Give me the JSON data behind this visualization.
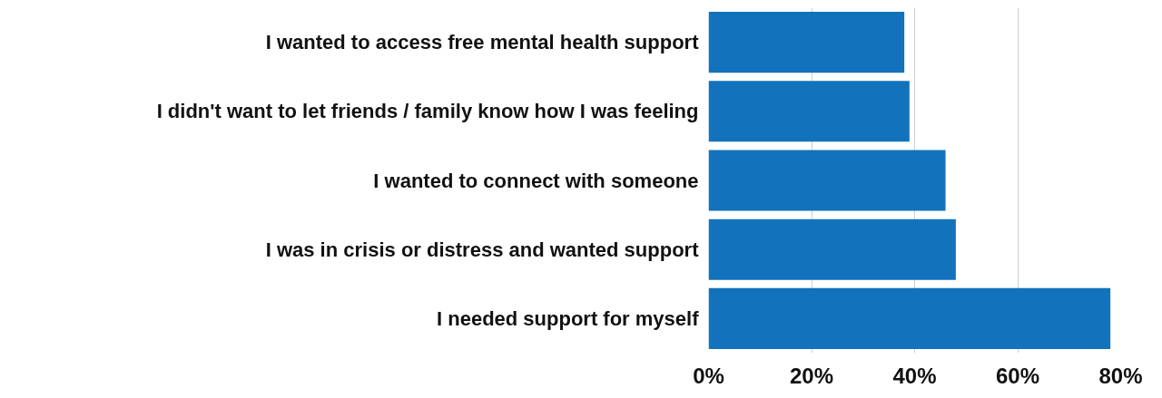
{
  "chart_data": {
    "type": "bar",
    "orientation": "horizontal",
    "categories": [
      "I wanted to access free mental health support",
      "I didn't want to let friends / family know how I was feeling",
      "I wanted to connect with someone",
      "I was in crisis or distress and wanted support",
      "I needed support for myself"
    ],
    "values": [
      38,
      39,
      46,
      48,
      78
    ],
    "color": "#1272bb",
    "xlim": [
      0,
      80
    ],
    "xticks": [
      {
        "value": 0,
        "label": "0%"
      },
      {
        "value": 20,
        "label": "20%"
      },
      {
        "value": 40,
        "label": "40%"
      },
      {
        "value": 60,
        "label": "60%"
      },
      {
        "value": 80,
        "label": "80%"
      }
    ],
    "grid": "x"
  }
}
